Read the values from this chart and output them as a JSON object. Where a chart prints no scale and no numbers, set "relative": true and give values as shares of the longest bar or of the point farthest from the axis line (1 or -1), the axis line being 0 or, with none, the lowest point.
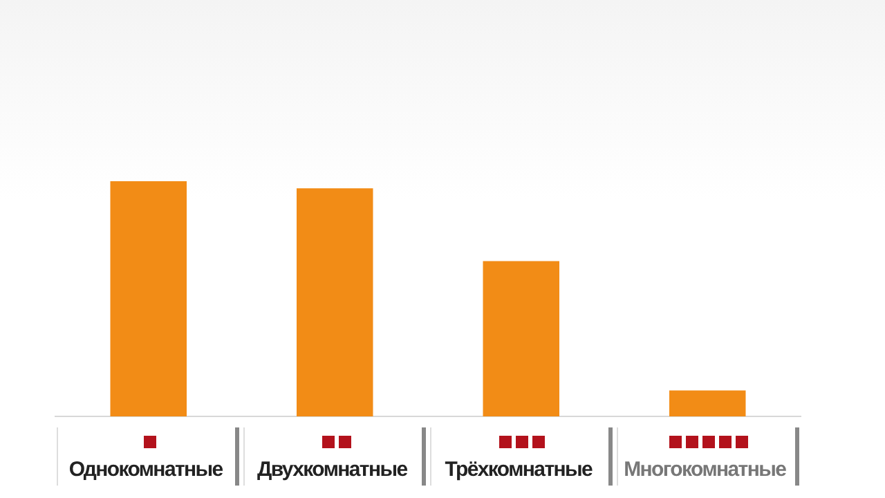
{
  "chart_data": {
    "type": "bar",
    "relative": true,
    "categories": [
      "Однокомнатные",
      "Двухкомнатные",
      "Трёхкомнатные",
      "Многокомнатные"
    ],
    "values": [
      1,
      0.97,
      0.66,
      0.11
    ],
    "color": "#f28c16"
  }
}
